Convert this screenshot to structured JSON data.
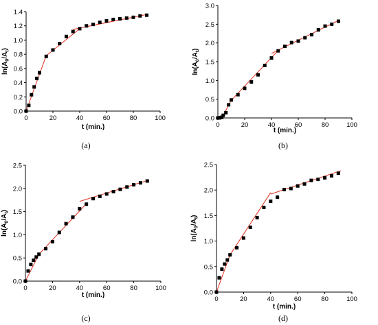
{
  "chart_data": [
    {
      "type": "scatter",
      "subfigure_label": "(a)",
      "xlabel": "t (min.)",
      "ylabel_parts": [
        "ln(A",
        "0",
        "/A",
        "t",
        ")"
      ],
      "xlim": [
        0,
        100
      ],
      "ylim": [
        0,
        1.4
      ],
      "xticks": [
        "0",
        "20",
        "40",
        "60",
        "80",
        "100"
      ],
      "yticks": [
        "0.0",
        "0.2",
        "0.4",
        "0.6",
        "0.8",
        "1.0",
        "1.2",
        "1.4"
      ],
      "xtick_values": [
        0,
        20,
        40,
        60,
        80,
        100
      ],
      "ytick_values": [
        0,
        0.2,
        0.4,
        0.6,
        0.8,
        1.0,
        1.2,
        1.4
      ],
      "points": [
        [
          0,
          0
        ],
        [
          2,
          0.08
        ],
        [
          4,
          0.23
        ],
        [
          6,
          0.34
        ],
        [
          8,
          0.46
        ],
        [
          10,
          0.54
        ],
        [
          15,
          0.77
        ],
        [
          20,
          0.86
        ],
        [
          25,
          0.95
        ],
        [
          30,
          1.05
        ],
        [
          35,
          1.12
        ],
        [
          40,
          1.16
        ],
        [
          45,
          1.2
        ],
        [
          50,
          1.22
        ],
        [
          55,
          1.25
        ],
        [
          60,
          1.27
        ],
        [
          65,
          1.29
        ],
        [
          70,
          1.3
        ],
        [
          75,
          1.31
        ],
        [
          80,
          1.32
        ],
        [
          85,
          1.34
        ],
        [
          90,
          1.35
        ]
      ],
      "fit_lines": [
        [
          [
            0,
            0
          ],
          [
            15,
            0.78
          ]
        ],
        [
          [
            15,
            0.78
          ],
          [
            40,
            1.16
          ]
        ],
        [
          [
            35,
            1.15
          ],
          [
            90,
            1.36
          ]
        ]
      ],
      "colors": {
        "points": "#000000",
        "fit": "#e03020"
      }
    },
    {
      "type": "scatter",
      "subfigure_label": "(b)",
      "xlabel": "t (min.)",
      "ylabel_parts": [
        "ln(A",
        "0",
        "/A",
        "t",
        ")"
      ],
      "xlim": [
        0,
        100
      ],
      "ylim": [
        0,
        3.0
      ],
      "xticks": [
        "0",
        "20",
        "40",
        "60",
        "80",
        "100"
      ],
      "yticks": [
        "0.0",
        "0.5",
        "1.0",
        "1.5",
        "2.0",
        "2.5",
        "3.0"
      ],
      "xtick_values": [
        0,
        20,
        40,
        60,
        80,
        100
      ],
      "ytick_values": [
        0,
        0.5,
        1.0,
        1.5,
        2.0,
        2.5,
        3.0
      ],
      "points": [
        [
          0,
          0
        ],
        [
          1,
          0
        ],
        [
          2,
          0.01
        ],
        [
          3,
          0.02
        ],
        [
          4,
          0.07
        ],
        [
          6,
          0.14
        ],
        [
          8,
          0.35
        ],
        [
          10,
          0.48
        ],
        [
          15,
          0.62
        ],
        [
          20,
          0.79
        ],
        [
          25,
          0.96
        ],
        [
          30,
          1.15
        ],
        [
          35,
          1.4
        ],
        [
          40,
          1.6
        ],
        [
          45,
          1.79
        ],
        [
          50,
          1.91
        ],
        [
          55,
          2.01
        ],
        [
          60,
          2.05
        ],
        [
          65,
          2.14
        ],
        [
          70,
          2.22
        ],
        [
          75,
          2.35
        ],
        [
          80,
          2.45
        ],
        [
          85,
          2.5
        ],
        [
          90,
          2.58
        ]
      ],
      "fit_lines": [
        [
          [
            0,
            0
          ],
          [
            4,
            0.07
          ]
        ],
        [
          [
            4,
            0.07
          ],
          [
            10,
            0.47
          ]
        ],
        [
          [
            10,
            0.47
          ],
          [
            45,
            1.8
          ]
        ],
        [
          [
            40,
            1.72
          ],
          [
            90,
            2.6
          ]
        ]
      ],
      "colors": {
        "points": "#000000",
        "fit": "#e03020"
      }
    },
    {
      "type": "scatter",
      "subfigure_label": "(c)",
      "xlabel": "t (min.)",
      "ylabel_parts": [
        "ln(A",
        "0",
        "/A",
        "t",
        ")"
      ],
      "xlim": [
        0,
        100
      ],
      "ylim": [
        0,
        2.5
      ],
      "xticks": [
        "0",
        "20",
        "40",
        "60",
        "80",
        "100"
      ],
      "yticks": [
        "0.0",
        "0.5",
        "1.0",
        "1.5",
        "2.0",
        "2.5"
      ],
      "xtick_values": [
        0,
        20,
        40,
        60,
        80,
        100
      ],
      "ytick_values": [
        0,
        0.5,
        1.0,
        1.5,
        2.0,
        2.5
      ],
      "points": [
        [
          0,
          0
        ],
        [
          2,
          0.22
        ],
        [
          4,
          0.36
        ],
        [
          6,
          0.45
        ],
        [
          8,
          0.52
        ],
        [
          10,
          0.58
        ],
        [
          15,
          0.7
        ],
        [
          20,
          0.85
        ],
        [
          25,
          1.05
        ],
        [
          30,
          1.24
        ],
        [
          35,
          1.38
        ],
        [
          40,
          1.56
        ],
        [
          45,
          1.66
        ],
        [
          50,
          1.78
        ],
        [
          55,
          1.83
        ],
        [
          60,
          1.88
        ],
        [
          65,
          1.93
        ],
        [
          70,
          1.98
        ],
        [
          75,
          2.03
        ],
        [
          80,
          2.08
        ],
        [
          85,
          2.12
        ],
        [
          90,
          2.16
        ]
      ],
      "fit_lines": [
        [
          [
            0,
            0
          ],
          [
            10,
            0.58
          ]
        ],
        [
          [
            10,
            0.58
          ],
          [
            45,
            1.67
          ]
        ],
        [
          [
            40,
            1.72
          ],
          [
            90,
            2.17
          ]
        ]
      ],
      "colors": {
        "points": "#000000",
        "fit": "#e03020"
      }
    },
    {
      "type": "scatter",
      "subfigure_label": "(d)",
      "xlabel": "t (min.)",
      "ylabel_parts": [
        "ln(A",
        "0",
        "/A",
        "t",
        ")"
      ],
      "xlim": [
        0,
        100
      ],
      "ylim": [
        0,
        2.5
      ],
      "xticks": [
        "0",
        "20",
        "40",
        "60",
        "80",
        "100"
      ],
      "yticks": [
        "0.0",
        "0.5",
        "1.0",
        "1.5",
        "2.0",
        "2.5"
      ],
      "xtick_values": [
        0,
        20,
        40,
        60,
        80,
        100
      ],
      "ytick_values": [
        0,
        0.5,
        1.0,
        1.5,
        2.0,
        2.5
      ],
      "points": [
        [
          0,
          0
        ],
        [
          2,
          0.28
        ],
        [
          4,
          0.45
        ],
        [
          6,
          0.55
        ],
        [
          8,
          0.63
        ],
        [
          10,
          0.73
        ],
        [
          15,
          0.87
        ],
        [
          20,
          1.06
        ],
        [
          25,
          1.27
        ],
        [
          30,
          1.46
        ],
        [
          35,
          1.66
        ],
        [
          40,
          1.78
        ],
        [
          45,
          1.86
        ],
        [
          50,
          2.01
        ],
        [
          55,
          2.03
        ],
        [
          60,
          2.08
        ],
        [
          65,
          2.12
        ],
        [
          70,
          2.19
        ],
        [
          75,
          2.21
        ],
        [
          80,
          2.24
        ],
        [
          85,
          2.28
        ],
        [
          90,
          2.33
        ]
      ],
      "fit_lines": [
        [
          [
            0,
            0
          ],
          [
            10,
            0.73
          ]
        ],
        [
          [
            10,
            0.73
          ],
          [
            40,
            1.95
          ]
        ],
        [
          [
            40,
            1.92
          ],
          [
            92,
            2.38
          ]
        ]
      ],
      "colors": {
        "points": "#000000",
        "fit": "#e03020"
      }
    }
  ]
}
